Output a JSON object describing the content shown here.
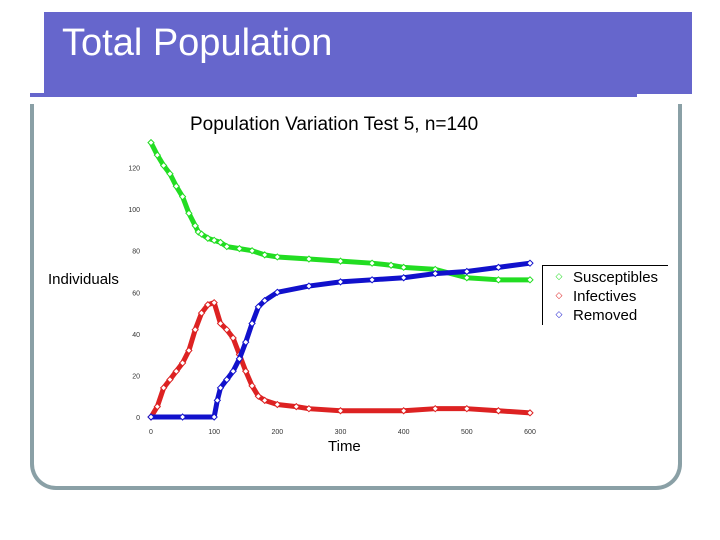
{
  "slide": {
    "title": "Total Population"
  },
  "chart_data": {
    "type": "scatter",
    "title": "Population Variation Test 5, n=140",
    "xlabel": "Time",
    "ylabel": "Individuals",
    "xlim": [
      0,
      600
    ],
    "ylim": [
      0,
      140
    ],
    "xticks": [
      "0",
      "100",
      "200",
      "300",
      "400",
      "500",
      "600"
    ],
    "yticks": [
      "0",
      "20",
      "40",
      "60",
      "80",
      "100",
      "120"
    ],
    "legend_position": "right",
    "series": [
      {
        "name": "Susceptibles",
        "marker": "◇",
        "color": "#22dd22",
        "x": [
          0,
          10,
          20,
          30,
          40,
          50,
          60,
          70,
          75,
          80,
          90,
          100,
          110,
          120,
          140,
          160,
          180,
          200,
          250,
          300,
          350,
          380,
          400,
          450,
          500,
          550,
          600
        ],
        "y": [
          132,
          126,
          121,
          117,
          111,
          106,
          98,
          92,
          89,
          88,
          86,
          85,
          84,
          82,
          81,
          80,
          78,
          77,
          76,
          75,
          74,
          73,
          72,
          71,
          67,
          66,
          66
        ]
      },
      {
        "name": "Infectives",
        "marker": "◇",
        "color": "#dd2222",
        "x": [
          0,
          10,
          20,
          30,
          40,
          50,
          60,
          70,
          80,
          90,
          100,
          110,
          120,
          130,
          140,
          150,
          160,
          170,
          180,
          200,
          230,
          250,
          300,
          400,
          450,
          500,
          550,
          600
        ],
        "y": [
          0,
          5,
          14,
          18,
          22,
          26,
          32,
          42,
          50,
          54,
          55,
          45,
          42,
          38,
          30,
          22,
          15,
          10,
          8,
          6,
          5,
          4,
          3,
          3,
          4,
          4,
          3,
          2
        ]
      },
      {
        "name": "Removed",
        "marker": "◇",
        "color": "#1111cc",
        "x": [
          0,
          50,
          100,
          105,
          110,
          120,
          130,
          140,
          150,
          160,
          170,
          180,
          200,
          250,
          300,
          350,
          400,
          450,
          500,
          550,
          600
        ],
        "y": [
          0,
          0,
          0,
          8,
          14,
          18,
          22,
          28,
          36,
          45,
          53,
          56,
          60,
          63,
          65,
          66,
          67,
          69,
          70,
          72,
          74
        ]
      }
    ]
  }
}
